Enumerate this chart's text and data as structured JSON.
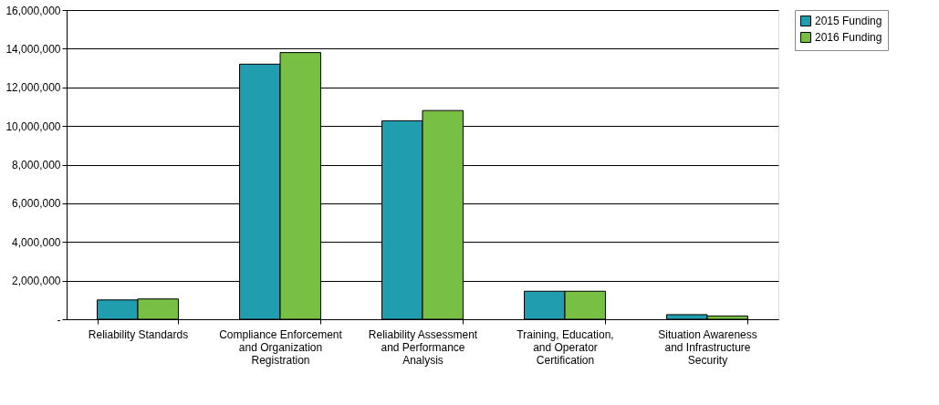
{
  "chart_data": {
    "type": "bar",
    "categories": [
      "Reliability Standards",
      "Compliance Enforcement and Organization Registration",
      "Reliability Assessment and Performance Analysis",
      "Training, Education, and Operator Certification",
      "Situation Awareness and Infrastructure Security"
    ],
    "series": [
      {
        "name": "2015 Funding",
        "color": "#209daf",
        "values": [
          1000000,
          13200000,
          10270000,
          1450000,
          240000
        ]
      },
      {
        "name": "2016 Funding",
        "color": "#77c043",
        "values": [
          1050000,
          13800000,
          10800000,
          1450000,
          170000
        ]
      }
    ],
    "ylim": [
      0,
      16000000
    ],
    "yticks": [
      {
        "value": 0,
        "label": "-"
      },
      {
        "value": 2000000,
        "label": "2,000,000"
      },
      {
        "value": 4000000,
        "label": "4,000,000"
      },
      {
        "value": 6000000,
        "label": "6,000,000"
      },
      {
        "value": 8000000,
        "label": "8,000,000"
      },
      {
        "value": 10000000,
        "label": "10,000,000"
      },
      {
        "value": 12000000,
        "label": "12,000,000"
      },
      {
        "value": 14000000,
        "label": "14,000,000"
      },
      {
        "value": 16000000,
        "label": "16,000,000"
      }
    ],
    "grid": "y",
    "legend": "right"
  }
}
